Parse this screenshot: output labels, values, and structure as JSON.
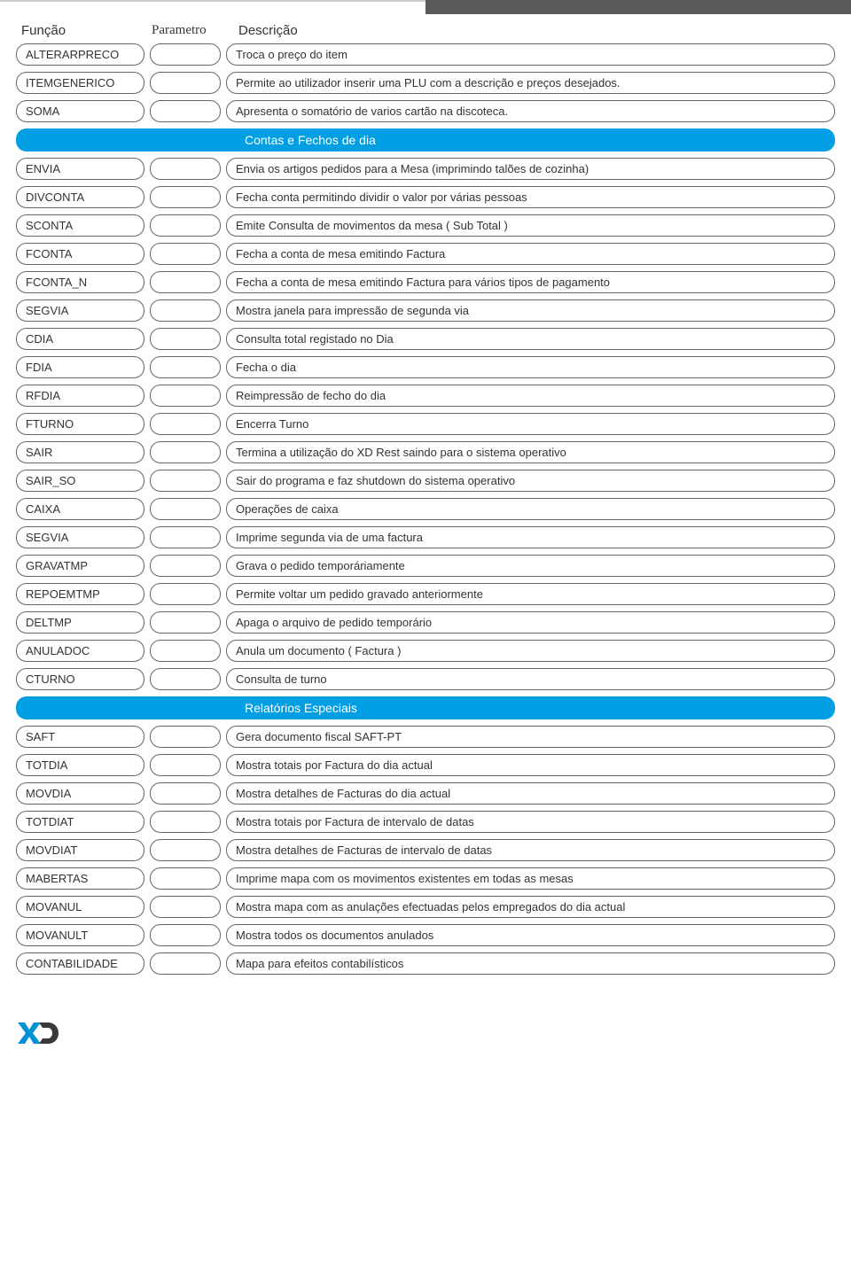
{
  "colors": {
    "sectionBar": "#009ee3",
    "pillBorder": "#666666",
    "text": "#333333",
    "topBarRight": "#595959",
    "logoBlue": "#0091d4",
    "logoDark": "#3a3a3a"
  },
  "headers": {
    "funcao": "Função",
    "parametro": "Parametro",
    "descricao": "Descrição"
  },
  "sections": [
    {
      "rows": [
        {
          "funcao": "ALTERARPRECO",
          "param": "",
          "desc": "Troca o preço do item"
        },
        {
          "funcao": "ITEMGENERICO",
          "param": "",
          "desc": "Permite ao utilizador inserir uma PLU com a descrição e preços desejados."
        },
        {
          "funcao": "SOMA",
          "param": "",
          "desc": "Apresenta o somatório de varios cartão na discoteca."
        }
      ]
    },
    {
      "title": "Contas e Fechos de dia",
      "rows": [
        {
          "funcao": "ENVIA",
          "param": "",
          "desc": "Envia os artigos pedidos para a Mesa (imprimindo talões de cozinha)"
        },
        {
          "funcao": "DIVCONTA",
          "param": "",
          "desc": "Fecha conta permitindo dividir o valor por várias pessoas"
        },
        {
          "funcao": "SCONTA",
          "param": "",
          "desc": "Emite Consulta de movimentos da mesa ( Sub Total )"
        },
        {
          "funcao": "FCONTA",
          "param": "",
          "desc": "Fecha a conta de mesa emitindo Factura"
        },
        {
          "funcao": "FCONTA_N",
          "param": "",
          "desc": "Fecha a conta de mesa emitindo Factura para vários tipos de pagamento"
        },
        {
          "funcao": "SEGVIA",
          "param": "",
          "desc": "Mostra janela para impressão de segunda via"
        },
        {
          "funcao": "CDIA",
          "param": "",
          "desc": "Consulta total registado no Dia"
        },
        {
          "funcao": "FDIA",
          "param": "",
          "desc": "Fecha o dia"
        },
        {
          "funcao": "RFDIA",
          "param": "",
          "desc": "Reimpressão de fecho do dia"
        },
        {
          "funcao": "FTURNO",
          "param": "",
          "desc": "Encerra Turno"
        },
        {
          "funcao": "SAIR",
          "param": "",
          "desc": "Termina a utilização do XD Rest saindo para o sistema operativo"
        },
        {
          "funcao": "SAIR_SO",
          "param": "",
          "desc": "Sair do programa e faz shutdown do sistema operativo"
        },
        {
          "funcao": "CAIXA",
          "param": "",
          "desc": "Operações de caixa"
        },
        {
          "funcao": "SEGVIA",
          "param": "",
          "desc": "Imprime segunda via de uma factura"
        },
        {
          "funcao": "GRAVATMP",
          "param": "",
          "desc": "Grava o pedido temporáriamente"
        },
        {
          "funcao": "REPOEMTMP",
          "param": "",
          "desc": "Permite voltar um pedido gravado anteriormente"
        },
        {
          "funcao": "DELTMP",
          "param": "",
          "desc": "Apaga o arquivo de pedido temporário"
        },
        {
          "funcao": "ANULADOC",
          "param": "",
          "desc": "Anula um documento ( Factura )"
        },
        {
          "funcao": "CTURNO",
          "param": "",
          "desc": "Consulta de turno"
        }
      ]
    },
    {
      "title": "Relatórios Especiais",
      "rows": [
        {
          "funcao": "SAFT",
          "param": "",
          "desc": "Gera documento fiscal SAFT-PT"
        },
        {
          "funcao": "TOTDIA",
          "param": "",
          "desc": "Mostra totais por Factura do dia actual"
        },
        {
          "funcao": "MOVDIA",
          "param": "",
          "desc": "Mostra detalhes de Facturas do dia actual"
        },
        {
          "funcao": "TOTDIAT",
          "param": "",
          "desc": "Mostra totais por Factura de intervalo de datas"
        },
        {
          "funcao": "MOVDIAT",
          "param": "",
          "desc": "Mostra detalhes de Facturas de intervalo de datas"
        },
        {
          "funcao": "MABERTAS",
          "param": "",
          "desc": "Imprime mapa com os movimentos existentes em todas as mesas"
        },
        {
          "funcao": "MOVANUL",
          "param": "",
          "desc": "Mostra mapa com as anulações efectuadas pelos empregados do dia actual"
        },
        {
          "funcao": "MOVANULT",
          "param": "",
          "desc": "Mostra todos os documentos anulados"
        },
        {
          "funcao": "CONTABILIDADE",
          "param": "",
          "desc": "Mapa para efeitos contabilísticos"
        }
      ]
    }
  ]
}
